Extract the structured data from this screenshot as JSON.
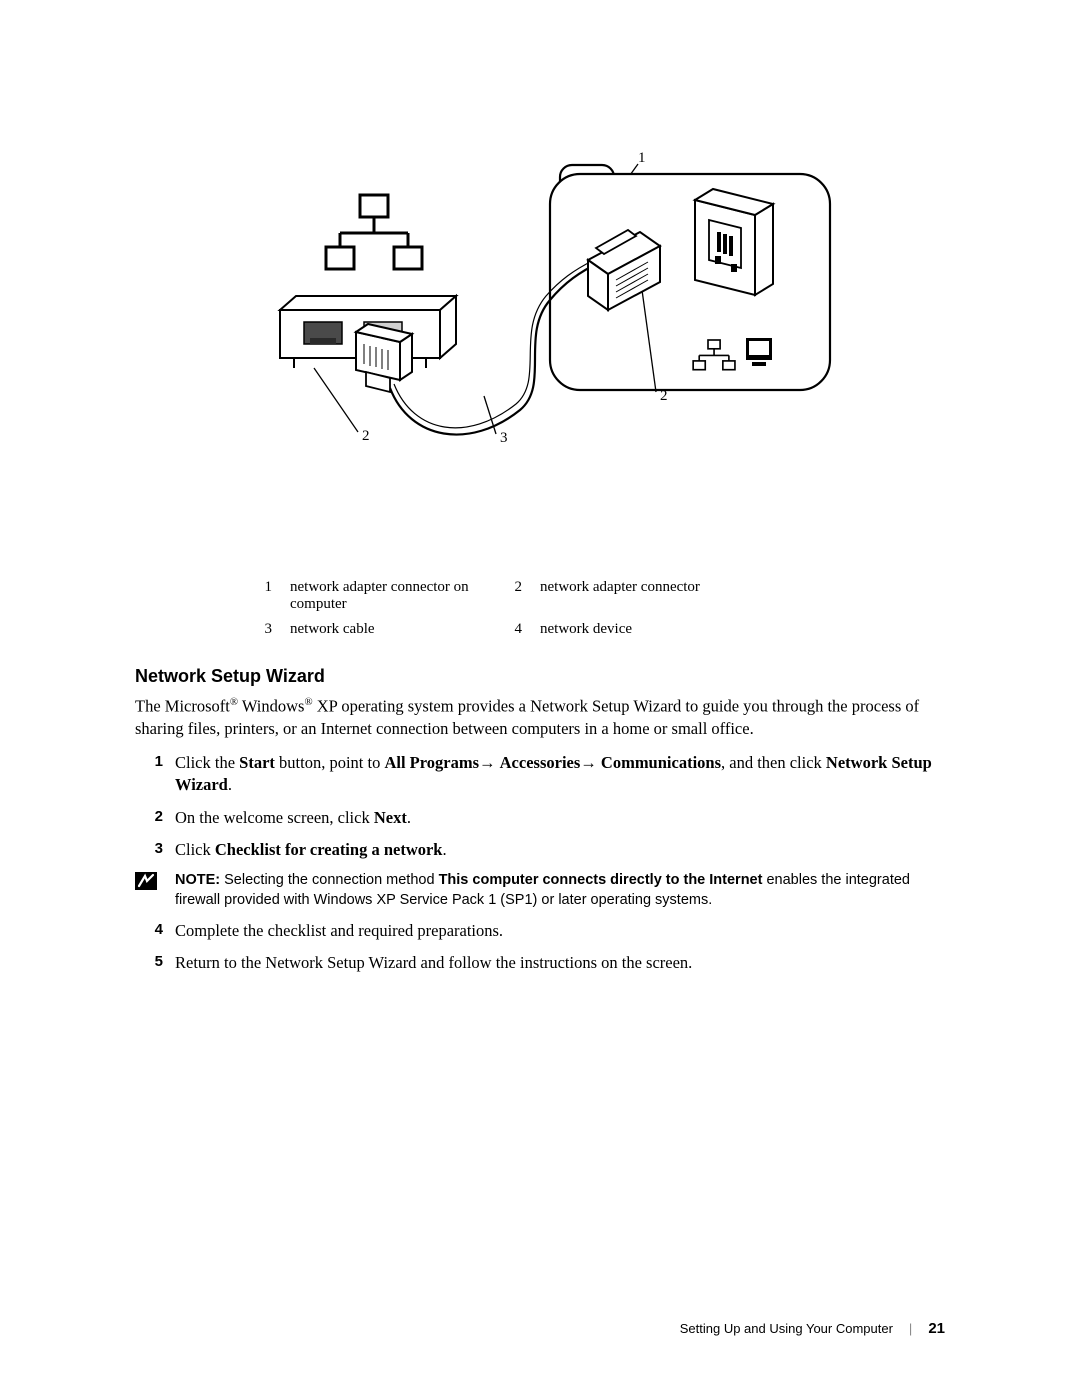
{
  "diagram": {
    "callouts": [
      "1",
      "2",
      "2",
      "3"
    ],
    "callout_font_size": 15
  },
  "legend": {
    "items": [
      {
        "num": "1",
        "text": "network adapter connector on computer"
      },
      {
        "num": "2",
        "text": "network adapter connector"
      },
      {
        "num": "3",
        "text": "network cable"
      },
      {
        "num": "4",
        "text": "network device"
      }
    ],
    "font_size": 15
  },
  "section": {
    "heading": "Network Setup Wizard",
    "heading_font_size": 18,
    "intro_parts": [
      "The Microsoft",
      " Windows",
      " XP operating system provides a Network Setup Wizard to guide you through the process of sharing files, printers, or an Internet connection between computers in a home or small office."
    ],
    "reg_symbol": "®"
  },
  "steps": [
    {
      "num": "1",
      "segments": [
        {
          "t": "Click the "
        },
        {
          "t": "Start",
          "b": true
        },
        {
          "t": " button, point to "
        },
        {
          "t": "All Programs",
          "b": true
        },
        {
          "t": "→ ",
          "arrow": true
        },
        {
          "t": "Accessories",
          "b": true
        },
        {
          "t": "→ ",
          "arrow": true
        },
        {
          "t": "Communications",
          "b": true
        },
        {
          "t": ", and then click "
        },
        {
          "t": "Network Setup Wizard",
          "b": true
        },
        {
          "t": "."
        }
      ]
    },
    {
      "num": "2",
      "segments": [
        {
          "t": "On the welcome screen, click "
        },
        {
          "t": "Next",
          "b": true
        },
        {
          "t": "."
        }
      ]
    },
    {
      "num": "3",
      "segments": [
        {
          "t": "Click "
        },
        {
          "t": "Checklist for creating a network",
          "b": true
        },
        {
          "t": "."
        }
      ]
    }
  ],
  "note": {
    "label": "NOTE:",
    "segments": [
      {
        "t": " Selecting the connection method "
      },
      {
        "t": "This computer connects directly to the Internet",
        "b": true
      },
      {
        "t": " enables the integrated firewall provided with Windows XP Service Pack 1 (SP1) or later operating systems."
      }
    ],
    "icon_bg": "#000000",
    "icon_fg": "#ffffff"
  },
  "steps_after_note": [
    {
      "num": "4",
      "segments": [
        {
          "t": "Complete the checklist and required preparations."
        }
      ]
    },
    {
      "num": "5",
      "segments": [
        {
          "t": "Return to the Network Setup Wizard and follow the instructions on the screen."
        }
      ]
    }
  ],
  "footer": {
    "text": "Setting Up and Using Your Computer",
    "page_number": "21",
    "divider": "|"
  },
  "colors": {
    "text": "#000000",
    "background": "#ffffff",
    "orange_indicator": "#e58a2c",
    "diagram_stroke": "#000000",
    "diagram_fill": "#ffffff",
    "port_dark": "#4a4a4a",
    "port_light": "#d0d0d0"
  }
}
